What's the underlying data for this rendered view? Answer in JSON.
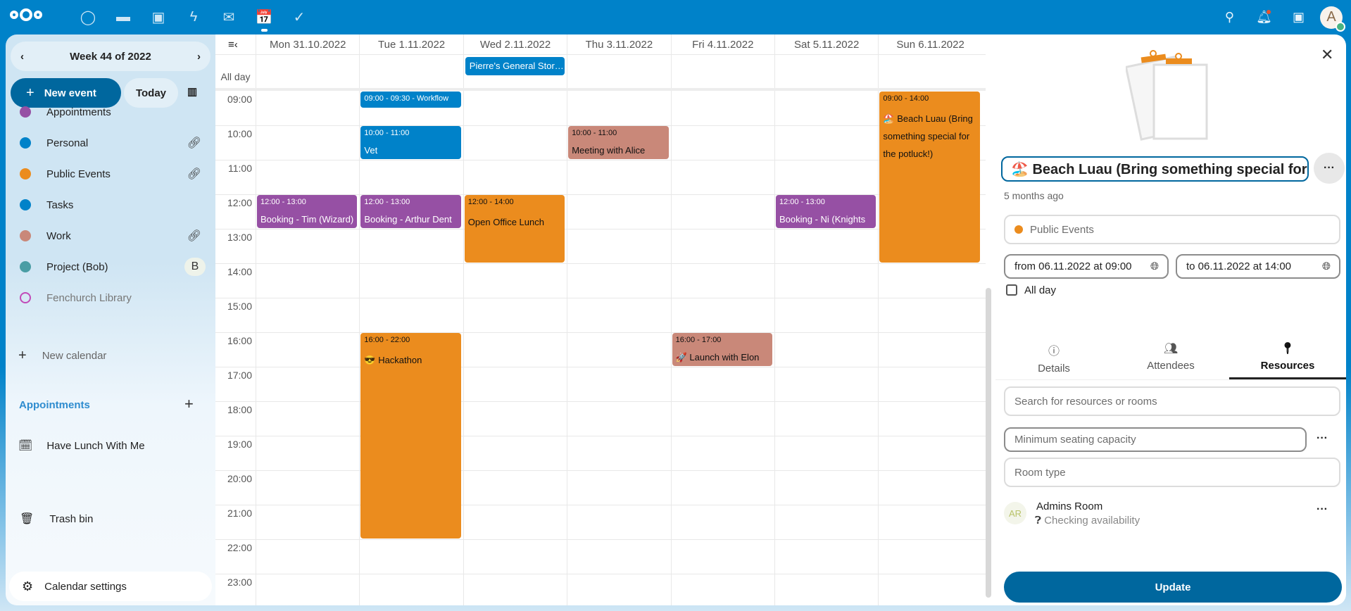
{
  "topbar": {
    "apps": [
      {
        "icon": "dashboard-icon",
        "g": "◯"
      },
      {
        "icon": "files-icon",
        "g": "▬"
      },
      {
        "icon": "photos-icon",
        "g": "▣"
      },
      {
        "icon": "activity-icon",
        "g": "ϟ"
      },
      {
        "icon": "mail-icon",
        "g": "✉"
      },
      {
        "icon": "calendar-icon",
        "g": "📅"
      },
      {
        "icon": "tasks-icon",
        "g": "✓"
      }
    ],
    "avatar_letter": "A",
    "colors": {
      "brand": "#0082c9"
    }
  },
  "sidebar": {
    "week_label": "Week 44 of 2022",
    "new_event": "New event",
    "today": "Today",
    "calendars": [
      {
        "label": "Appointments",
        "color": "#9650a4",
        "extra": ""
      },
      {
        "label": "Personal",
        "color": "#0082c9",
        "extra": "link"
      },
      {
        "label": "Public Events",
        "color": "#eb8c1e",
        "extra": "link"
      },
      {
        "label": "Tasks",
        "color": "#0082c9",
        "extra": ""
      },
      {
        "label": "Work",
        "color": "#c98879",
        "extra": "link"
      },
      {
        "label": "Project (Bob)",
        "color": "#4a9da4",
        "extra": "B"
      },
      {
        "label": "Fenchurch Library",
        "color": "#c14bb8",
        "extra": "",
        "disabled": true
      }
    ],
    "new_calendar": "New calendar",
    "appointments_heading": "Appointments",
    "appointment_item": "Have Lunch With Me",
    "trash": "Trash bin",
    "settings": "Calendar settings"
  },
  "calendar": {
    "days": [
      "Mon 31.10.2022",
      "Tue 1.11.2022",
      "Wed 2.11.2022",
      "Thu 3.11.2022",
      "Fri 4.11.2022",
      "Sat 5.11.2022",
      "Sun 6.11.2022"
    ],
    "all_day_label": "All day",
    "hours": [
      "09:00",
      "10:00",
      "11:00",
      "12:00",
      "13:00",
      "14:00",
      "15:00",
      "16:00",
      "17:00",
      "18:00",
      "19:00",
      "20:00",
      "21:00",
      "22:00",
      "23:00"
    ],
    "all_day_events": [
      {
        "day": 2,
        "title": "Pierre's General Stor…",
        "color": "#0082c9"
      }
    ],
    "events": [
      {
        "day": 1,
        "start": 9,
        "end": 9.5,
        "time": "09:00 - 09:30 - Workflow",
        "title": "",
        "color": "#0082c9",
        "fg": "#fff"
      },
      {
        "day": 1,
        "start": 10,
        "end": 11,
        "time": "10:00 - 11:00",
        "title": "Vet",
        "color": "#0082c9",
        "fg": "#fff"
      },
      {
        "day": 3,
        "start": 10,
        "end": 11,
        "time": "10:00 - 11:00",
        "title": "Meeting with Alice",
        "color": "#c98879",
        "fg": "#111"
      },
      {
        "day": 0,
        "start": 12,
        "end": 13,
        "time": "12:00 - 13:00",
        "title": "Booking - Tim (Wizard)",
        "color": "#9650a4",
        "fg": "#fff"
      },
      {
        "day": 1,
        "start": 12,
        "end": 13,
        "time": "12:00 - 13:00",
        "title": "Booking - Arthur Dent",
        "color": "#9650a4",
        "fg": "#fff"
      },
      {
        "day": 2,
        "start": 12,
        "end": 14,
        "time": "12:00 - 14:00",
        "title": "Open Office Lunch",
        "color": "#eb8c1e",
        "fg": "#111"
      },
      {
        "day": 5,
        "start": 12,
        "end": 13,
        "time": "12:00 - 13:00",
        "title": "Booking - Ni (Knights",
        "color": "#9650a4",
        "fg": "#fff"
      },
      {
        "day": 6,
        "start": 9,
        "end": 14,
        "time": "09:00 - 14:00",
        "title": "🏖️ Beach Luau (Bring something special for the potluck!)",
        "color": "#eb8c1e",
        "fg": "#111"
      },
      {
        "day": 1,
        "start": 16,
        "end": 22,
        "time": "16:00 - 22:00",
        "title": "😎 Hackathon",
        "color": "#eb8c1e",
        "fg": "#111"
      },
      {
        "day": 4,
        "start": 16,
        "end": 17,
        "time": "16:00 - 17:00",
        "title": "🚀 Launch with Elon",
        "color": "#c98879",
        "fg": "#111"
      }
    ]
  },
  "panel": {
    "title": "🏖️ Beach Luau (Bring something special for",
    "modified": "5 months ago",
    "calendar": "Public Events",
    "calendar_color": "#eb8c1e",
    "from": "from 06.11.2022 at 09:00",
    "to": "to 06.11.2022 at 14:00",
    "all_day": "All day",
    "all_day_checked": false,
    "tabs": [
      "Details",
      "Attendees",
      "Resources"
    ],
    "active_tab": "Resources",
    "search_placeholder": "Search for resources or rooms",
    "capacity_placeholder": "Minimum seating capacity",
    "roomtype_placeholder": "Room type",
    "resource": {
      "initials": "AR",
      "name": "Admins Room",
      "status": "Checking availability"
    },
    "update": "Update"
  }
}
